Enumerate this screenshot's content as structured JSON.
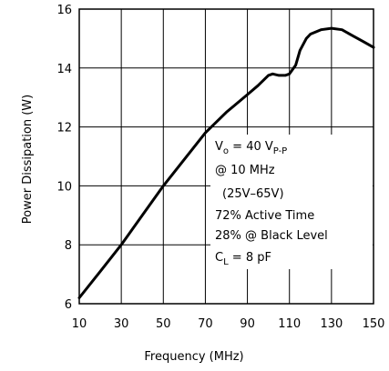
{
  "chart_data": {
    "type": "line",
    "title": "",
    "xlabel": "Frequency (MHz)",
    "ylabel": "Power Dissipation (W)",
    "xlim": [
      10,
      150
    ],
    "ylim": [
      6,
      16
    ],
    "x_ticks": [
      "10",
      "30",
      "50",
      "70",
      "90",
      "110",
      "130",
      "150"
    ],
    "y_ticks": [
      "6",
      "8",
      "10",
      "12",
      "14",
      "16"
    ],
    "grid": true,
    "series": [
      {
        "x": [
          10,
          20,
          30,
          40,
          50,
          60,
          70,
          80,
          90,
          95,
          100,
          102,
          105,
          108,
          110,
          113,
          115,
          118,
          120,
          125,
          130,
          135,
          140,
          145,
          150
        ],
        "y": [
          6.2,
          7.1,
          8.0,
          9.0,
          10.0,
          10.9,
          11.8,
          12.5,
          13.1,
          13.4,
          13.75,
          13.8,
          13.75,
          13.75,
          13.8,
          14.1,
          14.6,
          15.0,
          15.15,
          15.3,
          15.35,
          15.3,
          15.1,
          14.9,
          14.7
        ]
      }
    ],
    "annotations": {
      "line1_main": "V",
      "line1_sub": "o",
      "line1_eq": " = 40 V",
      "line1_sub2": "P-P",
      "line2": "@ 10 MHz",
      "line3": "(25V–65V)",
      "line4": "72% Active Time",
      "line5": "28% @ Black Level",
      "line6_main": "C",
      "line6_sub": "L",
      "line6_eq": " = 8 pF"
    }
  }
}
